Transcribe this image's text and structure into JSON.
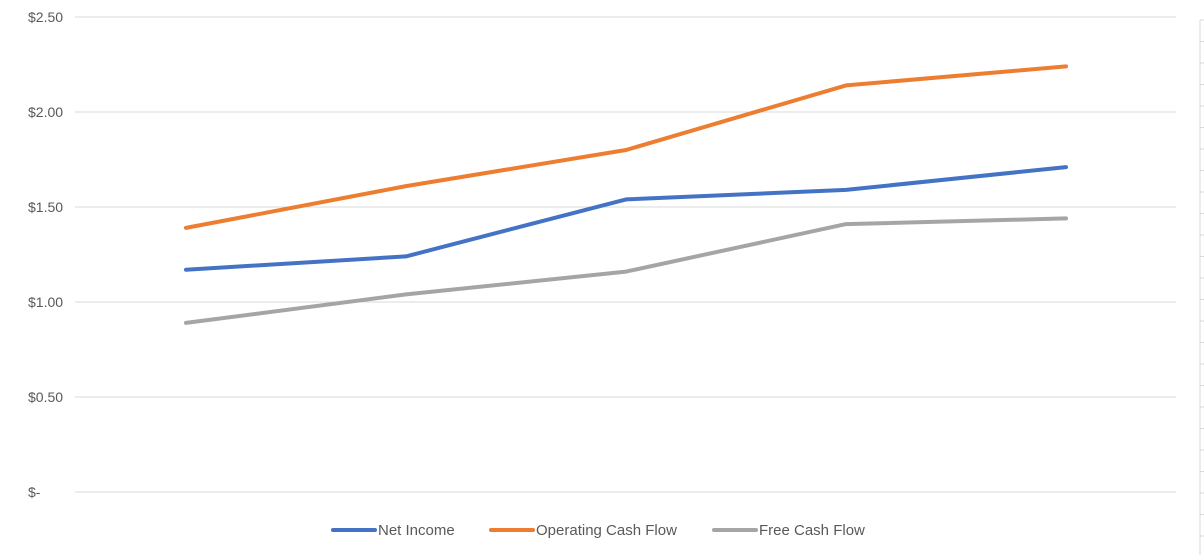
{
  "chart_data": {
    "type": "line",
    "categories": [
      "",
      "",
      "",
      "",
      ""
    ],
    "series": [
      {
        "name": "Net Income",
        "color": "#4472c4",
        "values": [
          1.17,
          1.24,
          1.54,
          1.59,
          1.71
        ]
      },
      {
        "name": "Operating Cash Flow",
        "color": "#ed7d31",
        "values": [
          1.39,
          1.61,
          1.8,
          2.14,
          2.24
        ]
      },
      {
        "name": "Free Cash Flow",
        "color": "#a5a5a5",
        "values": [
          0.89,
          1.04,
          1.16,
          1.41,
          1.44
        ]
      }
    ],
    "yticks": [
      {
        "value": 2.5,
        "label": "$2.50"
      },
      {
        "value": 2.0,
        "label": "$2.00"
      },
      {
        "value": 1.5,
        "label": "$1.50"
      },
      {
        "value": 1.0,
        "label": "$1.00"
      },
      {
        "value": 0.5,
        "label": "$0.50"
      },
      {
        "value": 0,
        "label": "$-"
      }
    ],
    "ylim": [
      0,
      2.5
    ],
    "title": "",
    "xlabel": "",
    "ylabel": "",
    "grid": true,
    "legend": "bottom-center"
  }
}
